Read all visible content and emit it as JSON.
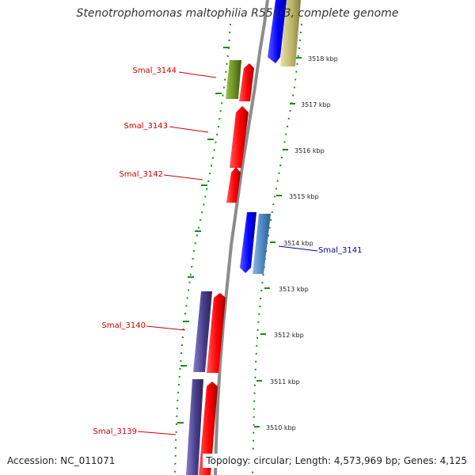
{
  "title": "Stenotrophomonas maltophilia R551-3, complete genome",
  "footer": {
    "accession": "Accession: NC_011071",
    "topology": "Topology: circular; Length: 4,573,969 bp; Genes: 4,125"
  },
  "colors": {
    "backbone": "#8c8c8c",
    "tick_dots": "#1a8c1a",
    "label_forward": "#cc0000",
    "label_reverse": "#00009e"
  },
  "ticks": [
    {
      "label": "3518 kbp",
      "kbp": 3518
    },
    {
      "label": "3517 kbp",
      "kbp": 3517
    },
    {
      "label": "3516 kbp",
      "kbp": 3516
    },
    {
      "label": "3515 kbp",
      "kbp": 3515
    },
    {
      "label": "3514 kbp",
      "kbp": 3514
    },
    {
      "label": "3513 kbp",
      "kbp": 3513
    },
    {
      "label": "3512 kbp",
      "kbp": 3512
    },
    {
      "label": "3511 kbp",
      "kbp": 3511
    },
    {
      "label": "3510 kbp",
      "kbp": 3510
    }
  ],
  "labels": [
    {
      "name": "Smal_3144",
      "strand": "forward"
    },
    {
      "name": "Smal_3143",
      "strand": "forward"
    },
    {
      "name": "Smal_3142",
      "strand": "forward"
    },
    {
      "name": "Smal_3141",
      "strand": "reverse"
    },
    {
      "name": "Smal_3140",
      "strand": "forward"
    },
    {
      "name": "Smal_3139",
      "strand": "forward"
    }
  ]
}
